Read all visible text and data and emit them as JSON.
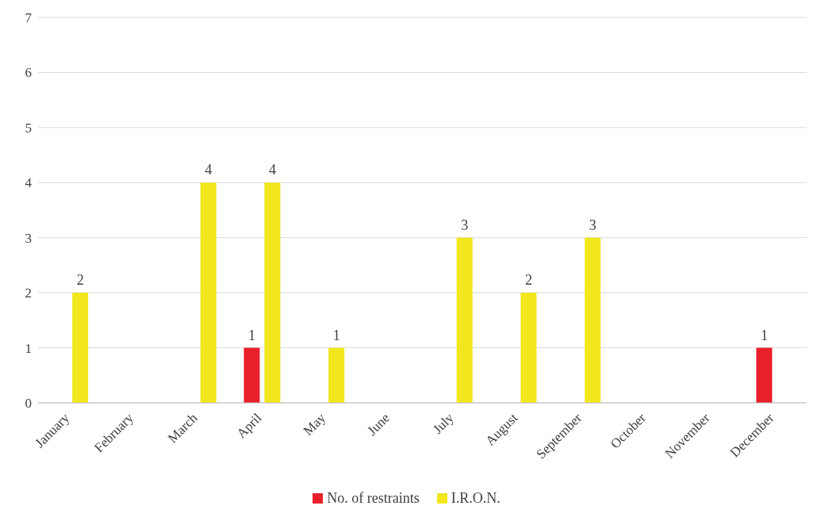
{
  "chart_data": {
    "type": "bar",
    "categories": [
      "January",
      "February",
      "March",
      "April",
      "May",
      "June",
      "July",
      "August",
      "September",
      "October",
      "November",
      "December"
    ],
    "series": [
      {
        "name": "No. of restraints",
        "color": "#e8202a",
        "values": [
          0,
          0,
          0,
          1,
          0,
          0,
          0,
          0,
          0,
          0,
          0,
          1
        ],
        "value_labels": [
          null,
          null,
          null,
          "1",
          null,
          null,
          null,
          null,
          null,
          null,
          null,
          "1"
        ]
      },
      {
        "name": "I.R.O.N.",
        "color": "#f2e71c",
        "values": [
          2,
          0,
          4,
          4,
          1,
          0,
          3,
          2,
          3,
          0,
          0,
          0
        ],
        "value_labels": [
          "2",
          null,
          "4",
          "4",
          "1",
          null,
          "3",
          "2",
          "3",
          null,
          null,
          null
        ]
      }
    ],
    "ylim": [
      0,
      7
    ],
    "yticks": [
      0,
      1,
      2,
      3,
      4,
      5,
      6,
      7
    ],
    "grid": "y",
    "legend": "bottom"
  }
}
